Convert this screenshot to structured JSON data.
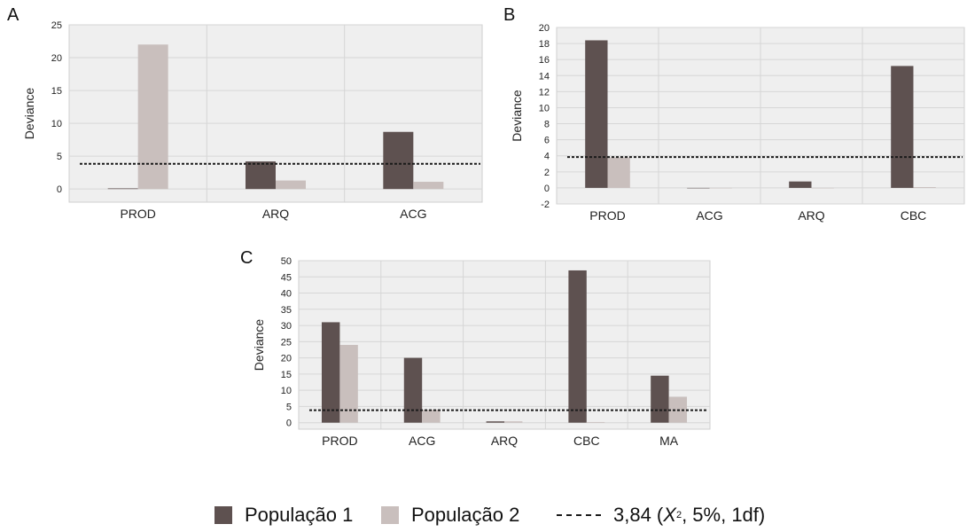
{
  "colors": {
    "series1": "#5e5150",
    "series2": "#c9bfbd",
    "grid": "#d6d6d6",
    "plot_bg": "#efefef",
    "threshold": "#1a1a1a"
  },
  "chart_data": [
    {
      "panel": "A",
      "type": "bar",
      "ylabel": "Deviance",
      "categories": [
        "PROD",
        "ARQ",
        "ACG"
      ],
      "series": [
        {
          "name": "População 1",
          "values": [
            0.1,
            4.2,
            8.7
          ]
        },
        {
          "name": "População 2",
          "values": [
            22,
            1.3,
            1.1
          ]
        }
      ],
      "threshold": 3.84,
      "ylim": [
        -2,
        25
      ],
      "yticks": [
        0,
        5,
        10,
        15,
        20,
        25
      ],
      "grid": true
    },
    {
      "panel": "B",
      "type": "bar",
      "ylabel": "Deviance",
      "categories": [
        "PROD",
        "ACG",
        "ARQ",
        "CBC"
      ],
      "series": [
        {
          "name": "População 1",
          "values": [
            18.4,
            0.0,
            0.8,
            15.2
          ]
        },
        {
          "name": "População 2",
          "values": [
            3.8,
            0.0,
            0.0,
            0.1
          ]
        }
      ],
      "threshold": 3.84,
      "ylim": [
        -2,
        20
      ],
      "yticks": [
        -2,
        0,
        2,
        4,
        6,
        8,
        10,
        12,
        14,
        16,
        18,
        20
      ],
      "grid": true
    },
    {
      "panel": "C",
      "type": "bar",
      "ylabel": "Deviance",
      "categories": [
        "PROD",
        "ACG",
        "ARQ",
        "CBC",
        "MA"
      ],
      "series": [
        {
          "name": "População 1",
          "values": [
            31,
            20,
            0.4,
            47,
            14.5
          ]
        },
        {
          "name": "População 2",
          "values": [
            24,
            4,
            0.4,
            0.2,
            8
          ]
        }
      ],
      "threshold": 3.84,
      "ylim": [
        -2,
        50
      ],
      "yticks": [
        0,
        5,
        10,
        15,
        20,
        25,
        30,
        35,
        40,
        45,
        50
      ],
      "grid": true
    }
  ],
  "legend": {
    "series1": "População 1",
    "series2": "População 2",
    "threshold_prefix": "3,84 (",
    "threshold_chi": "X",
    "threshold_sup": "2",
    "threshold_suffix": ", 5%, 1df)"
  }
}
